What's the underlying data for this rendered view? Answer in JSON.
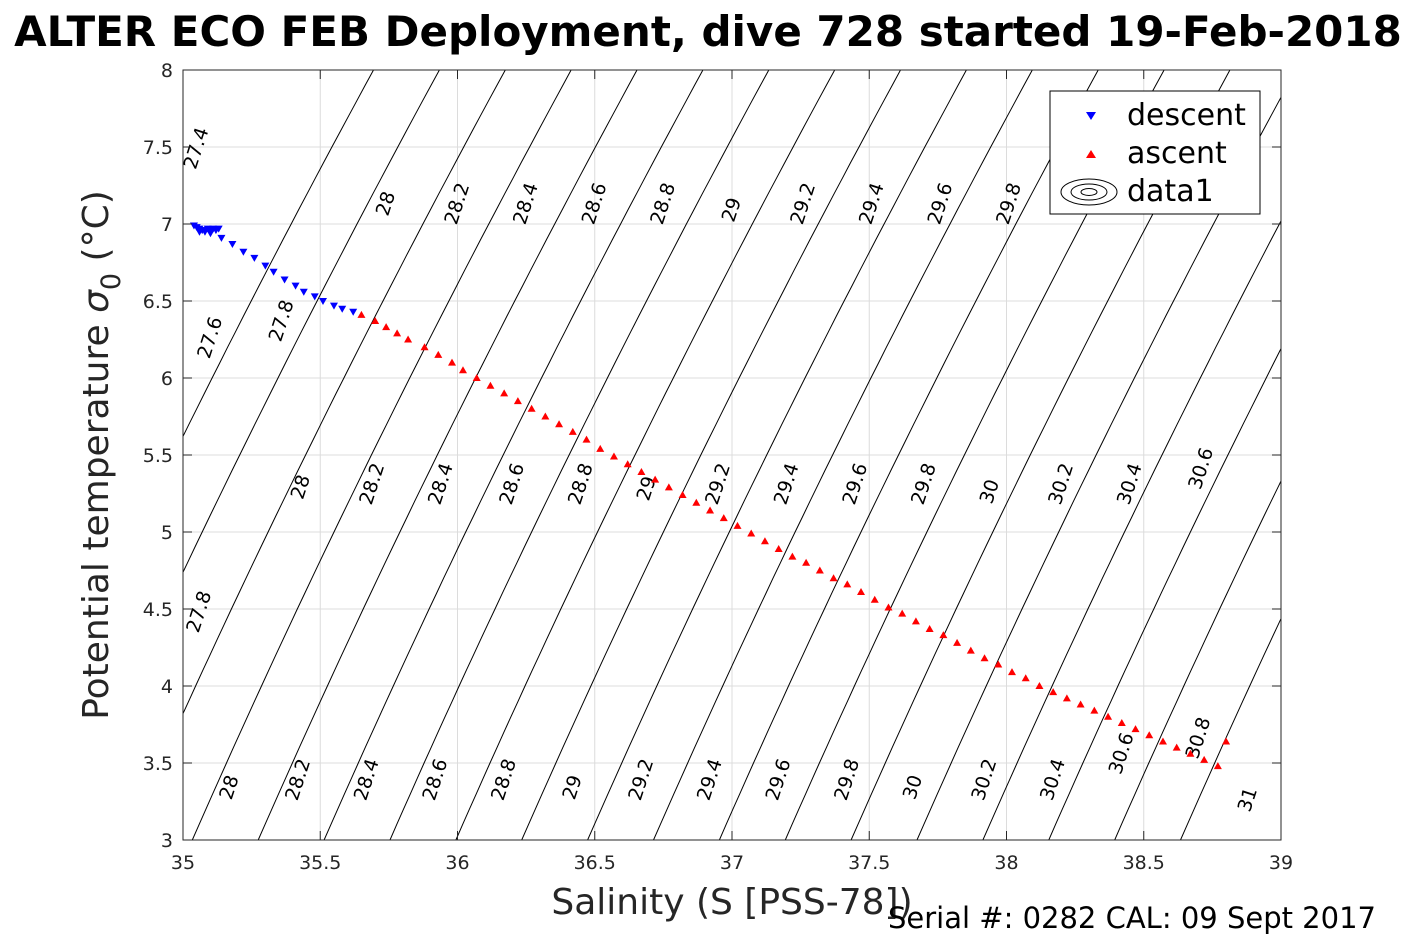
{
  "chart_data": {
    "type": "scatter",
    "title": "ALTER ECO FEB Deployment, dive 728 started 19-Feb-2018",
    "xlabel": "Salinity (S [PSS-78])",
    "ylabel_main": "Potential temperature ",
    "ylabel_sigma": "σ",
    "ylabel_sub": "0",
    "ylabel_unit": " (°C)",
    "xlim": [
      35,
      39
    ],
    "ylim": [
      3,
      8
    ],
    "xticks": [
      35,
      35.5,
      36,
      36.5,
      37,
      37.5,
      38,
      38.5,
      39
    ],
    "xtick_labels": [
      "35",
      "35.5",
      "36",
      "36.5",
      "37",
      "37.5",
      "38",
      "38.5",
      "39"
    ],
    "yticks": [
      3,
      3.5,
      4,
      4.5,
      5,
      5.5,
      6,
      6.5,
      7,
      7.5,
      8
    ],
    "ytick_labels": [
      "3",
      "3.5",
      "4",
      "4.5",
      "5",
      "5.5",
      "6",
      "6.5",
      "7",
      "7.5",
      "8"
    ],
    "grid": true,
    "legend_position": "top-right",
    "legend": [
      "descent",
      "ascent",
      "data1"
    ],
    "footer": "Serial #: 0282  CAL: 09 Sept 2017",
    "colors": {
      "descent": "#0000ff",
      "ascent": "#ff0000",
      "contour": "#000000"
    },
    "series": [
      {
        "name": "descent",
        "marker": "triangle-down",
        "x": [
          35.04,
          35.05,
          35.06,
          35.07,
          35.08,
          35.09,
          35.1,
          35.11,
          35.12,
          35.13,
          35.06,
          35.08,
          35.1,
          35.14,
          35.18,
          35.22,
          35.26,
          35.3,
          35.33,
          35.37,
          35.41,
          35.44,
          35.48,
          35.51,
          35.55,
          35.58,
          35.62
        ],
        "y": [
          6.99,
          6.98,
          6.97,
          6.96,
          6.96,
          6.97,
          6.96,
          6.97,
          6.96,
          6.97,
          6.95,
          6.95,
          6.94,
          6.91,
          6.87,
          6.82,
          6.78,
          6.73,
          6.69,
          6.64,
          6.6,
          6.56,
          6.53,
          6.5,
          6.47,
          6.45,
          6.43
        ]
      },
      {
        "name": "ascent",
        "marker": "triangle-up",
        "x": [
          35.65,
          35.7,
          35.74,
          35.78,
          35.82,
          35.88,
          35.93,
          35.98,
          36.02,
          36.07,
          36.12,
          36.17,
          36.22,
          36.27,
          36.32,
          36.37,
          36.42,
          36.47,
          36.52,
          36.57,
          36.62,
          36.67,
          36.72,
          36.77,
          36.82,
          36.87,
          36.92,
          36.97,
          37.02,
          37.07,
          37.12,
          37.17,
          37.22,
          37.27,
          37.32,
          37.37,
          37.42,
          37.47,
          37.52,
          37.57,
          37.62,
          37.67,
          37.72,
          37.77,
          37.82,
          37.87,
          37.92,
          37.97,
          38.02,
          38.07,
          38.12,
          38.17,
          38.22,
          38.27,
          38.32,
          38.37,
          38.42,
          38.47,
          38.52,
          38.57,
          38.62,
          38.67,
          38.72,
          38.77,
          38.8
        ],
        "y": [
          6.41,
          6.37,
          6.33,
          6.29,
          6.25,
          6.2,
          6.15,
          6.1,
          6.05,
          6.0,
          5.95,
          5.9,
          5.85,
          5.8,
          5.75,
          5.7,
          5.65,
          5.6,
          5.54,
          5.49,
          5.44,
          5.39,
          5.34,
          5.29,
          5.24,
          5.19,
          5.14,
          5.09,
          5.04,
          4.99,
          4.94,
          4.89,
          4.84,
          4.8,
          4.75,
          4.7,
          4.66,
          4.61,
          4.56,
          4.51,
          4.47,
          4.42,
          4.37,
          4.33,
          4.28,
          4.23,
          4.18,
          4.14,
          4.09,
          4.05,
          4.0,
          3.96,
          3.92,
          3.88,
          3.84,
          3.8,
          3.76,
          3.72,
          3.68,
          3.64,
          3.6,
          3.56,
          3.52,
          3.48,
          3.64
        ]
      }
    ],
    "contours": {
      "levels": [
        27.4,
        27.6,
        27.8,
        28,
        28.2,
        28.4,
        28.6,
        28.8,
        29,
        29.2,
        29.4,
        29.6,
        29.8,
        30,
        30.2,
        30.4,
        30.6,
        30.8,
        31
      ],
      "labels": [
        {
          "text": "27.4",
          "x": 35.07,
          "y": 7.48
        },
        {
          "text": "28",
          "x": 35.76,
          "y": 7.12
        },
        {
          "text": "28.2",
          "x": 36.02,
          "y": 7.12
        },
        {
          "text": "28.4",
          "x": 36.27,
          "y": 7.12
        },
        {
          "text": "28.6",
          "x": 36.52,
          "y": 7.12
        },
        {
          "text": "28.8",
          "x": 36.77,
          "y": 7.12
        },
        {
          "text": "29",
          "x": 37.02,
          "y": 7.08
        },
        {
          "text": "29.2",
          "x": 37.28,
          "y": 7.12
        },
        {
          "text": "29.4",
          "x": 37.53,
          "y": 7.12
        },
        {
          "text": "29.6",
          "x": 37.78,
          "y": 7.12
        },
        {
          "text": "29.8",
          "x": 38.03,
          "y": 7.12
        },
        {
          "text": "27.6",
          "x": 35.12,
          "y": 6.25
        },
        {
          "text": "27.8",
          "x": 35.38,
          "y": 6.36
        },
        {
          "text": "28",
          "x": 35.45,
          "y": 5.28
        },
        {
          "text": "28.2",
          "x": 35.71,
          "y": 5.3
        },
        {
          "text": "28.4",
          "x": 35.96,
          "y": 5.3
        },
        {
          "text": "28.6",
          "x": 36.22,
          "y": 5.3
        },
        {
          "text": "28.8",
          "x": 36.47,
          "y": 5.3
        },
        {
          "text": "29",
          "x": 36.71,
          "y": 5.27
        },
        {
          "text": "29.2",
          "x": 36.97,
          "y": 5.3
        },
        {
          "text": "29.4",
          "x": 37.22,
          "y": 5.3
        },
        {
          "text": "29.6",
          "x": 37.47,
          "y": 5.3
        },
        {
          "text": "29.8",
          "x": 37.72,
          "y": 5.3
        },
        {
          "text": "30",
          "x": 37.96,
          "y": 5.25
        },
        {
          "text": "30.2",
          "x": 38.22,
          "y": 5.3
        },
        {
          "text": "30.4",
          "x": 38.47,
          "y": 5.3
        },
        {
          "text": "30.6",
          "x": 38.73,
          "y": 5.4
        },
        {
          "text": "27.8",
          "x": 35.08,
          "y": 4.47
        },
        {
          "text": "28",
          "x": 35.19,
          "y": 3.33
        },
        {
          "text": "28.2",
          "x": 35.44,
          "y": 3.38
        },
        {
          "text": "28.4",
          "x": 35.69,
          "y": 3.38
        },
        {
          "text": "28.6",
          "x": 35.94,
          "y": 3.38
        },
        {
          "text": "28.8",
          "x": 36.19,
          "y": 3.38
        },
        {
          "text": "29",
          "x": 36.44,
          "y": 3.33
        },
        {
          "text": "29.2",
          "x": 36.69,
          "y": 3.38
        },
        {
          "text": "29.4",
          "x": 36.94,
          "y": 3.38
        },
        {
          "text": "29.6",
          "x": 37.19,
          "y": 3.38
        },
        {
          "text": "29.8",
          "x": 37.44,
          "y": 3.38
        },
        {
          "text": "30",
          "x": 37.68,
          "y": 3.33
        },
        {
          "text": "30.2",
          "x": 37.94,
          "y": 3.38
        },
        {
          "text": "30.4",
          "x": 38.19,
          "y": 3.38
        },
        {
          "text": "30.6",
          "x": 38.44,
          "y": 3.55
        },
        {
          "text": "30.8",
          "x": 38.72,
          "y": 3.65
        },
        {
          "text": "31",
          "x": 38.9,
          "y": 3.25
        }
      ]
    }
  }
}
